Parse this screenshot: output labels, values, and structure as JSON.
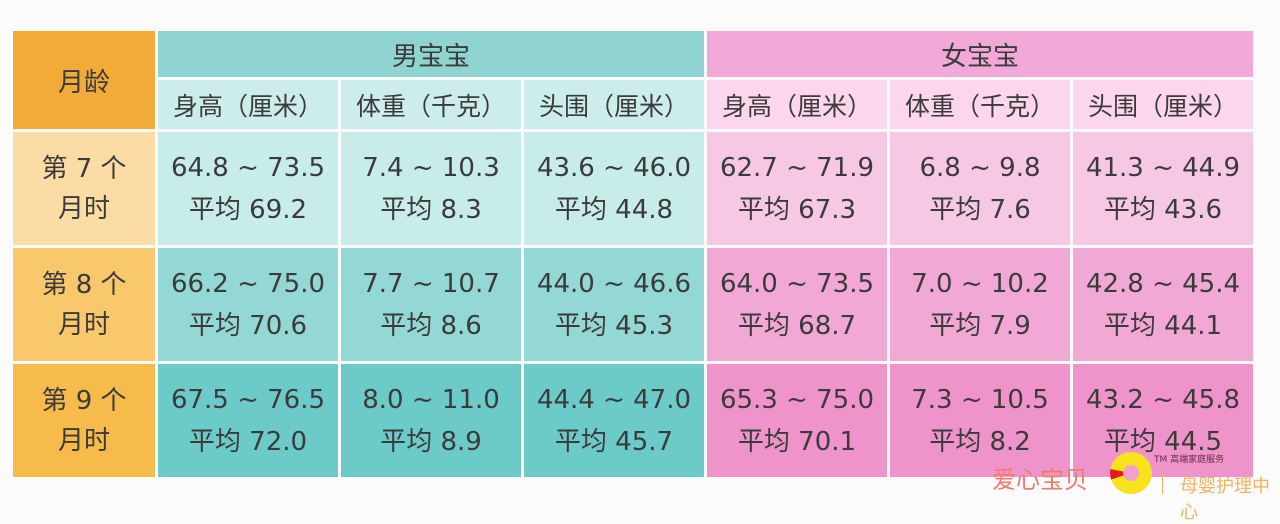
{
  "header": {
    "month_label": "月龄",
    "boys_label": "男宝宝",
    "girls_label": "女宝宝",
    "columns": [
      "身高（厘米）",
      "体重（千克）",
      "头围（厘米）",
      "身高（厘米）",
      "体重（千克）",
      "头围（厘米）"
    ]
  },
  "rows": [
    {
      "month_line1": "第 7 个",
      "month_line2": "月时",
      "cells": [
        {
          "range": "64.8 ~ 73.5",
          "avg": "平均 69.2"
        },
        {
          "range": "7.4 ~ 10.3",
          "avg": "平均 8.3"
        },
        {
          "range": "43.6 ~ 46.0",
          "avg": "平均 44.8"
        },
        {
          "range": "62.7 ~ 71.9",
          "avg": "平均 67.3"
        },
        {
          "range": "6.8 ~ 9.8",
          "avg": "平均 7.6"
        },
        {
          "range": "41.3 ~ 44.9",
          "avg": "平均 43.6"
        }
      ]
    },
    {
      "month_line1": "第 8 个",
      "month_line2": "月时",
      "cells": [
        {
          "range": "66.2 ~ 75.0",
          "avg": "平均 70.6"
        },
        {
          "range": "7.7 ~ 10.7",
          "avg": "平均 8.6"
        },
        {
          "range": "44.0 ~ 46.6",
          "avg": "平均 45.3"
        },
        {
          "range": "64.0 ~ 73.5",
          "avg": "平均 68.7"
        },
        {
          "range": "7.0 ~ 10.2",
          "avg": "平均 7.9"
        },
        {
          "range": "42.8 ~ 45.4",
          "avg": "平均 44.1"
        }
      ]
    },
    {
      "month_line1": "第 9 个",
      "month_line2": "月时",
      "cells": [
        {
          "range": "67.5 ~ 76.5",
          "avg": "平均 72.0"
        },
        {
          "range": "8.0 ~ 11.0",
          "avg": "平均 8.9"
        },
        {
          "range": "44.4 ~ 47.0",
          "avg": "平均 45.7"
        },
        {
          "range": "65.3 ~ 75.0",
          "avg": "平均 70.1"
        },
        {
          "range": "7.3 ~ 10.5",
          "avg": "平均 8.2"
        },
        {
          "range": "43.2 ~ 45.8",
          "avg": "平均 44.5"
        }
      ]
    }
  ],
  "watermark": {
    "brand": "爱心宝贝",
    "small_text": "TM 高端家庭服务",
    "center": "母婴护理中心"
  },
  "colors": {
    "month_header": "#f2ab38",
    "boys_header": "#8fd4d1",
    "girls_header": "#f2a9d7"
  }
}
